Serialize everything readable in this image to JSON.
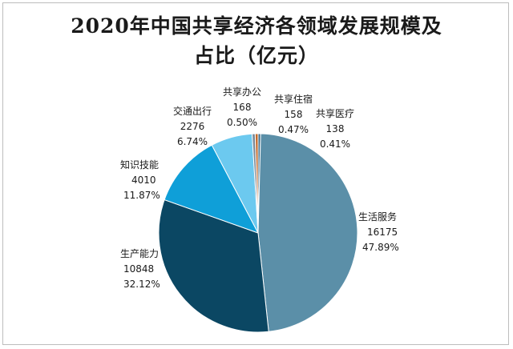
{
  "chart_data": {
    "type": "pie",
    "title": [
      "2020年中国共享经济各领域发展规模及",
      "占比（亿元）"
    ],
    "slices": [
      {
        "label": "生活服务",
        "value": 16175,
        "percent": "47.89%",
        "value_text": "16175",
        "color": "#5b8fa8"
      },
      {
        "label": "生产能力",
        "value": 10848,
        "percent": "32.12%",
        "value_text": "10848",
        "color": "#0b4763"
      },
      {
        "label": "知识技能",
        "value": 4010,
        "percent": "11.87%",
        "value_text": "4010",
        "color": "#0f9fd8"
      },
      {
        "label": "交通出行",
        "value": 2276,
        "percent": "6.74%",
        "value_text": "2276",
        "color": "#6cc9ef"
      },
      {
        "label": "共享办公",
        "value": 168,
        "percent": "0.50%",
        "value_text": "168",
        "color": "#7a8a99"
      },
      {
        "label": "共享住宿",
        "value": 158,
        "percent": "0.47%",
        "value_text": "158",
        "color": "#c46a2a"
      },
      {
        "label": "共享医疗",
        "value": 138,
        "percent": "0.41%",
        "value_text": "138",
        "color": "#3d6d8a"
      }
    ],
    "slice_order_clockwise_from_top": [
      "共享医疗",
      "生活服务",
      "生产能力",
      "知识技能",
      "交通出行",
      "共享办公",
      "共享住宿"
    ]
  }
}
